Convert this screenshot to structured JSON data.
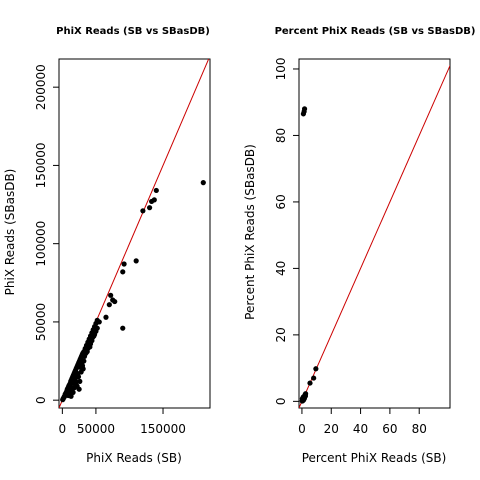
{
  "chart_data": [
    {
      "type": "scatter",
      "title": "PhiX Reads (SB vs SBasDB)",
      "xlabel": "PhiX Reads (SB)",
      "ylabel": "PhiX Reads (SBasDB)",
      "xlim": [
        -5000,
        220000
      ],
      "ylim": [
        -5000,
        218000
      ],
      "xticks": [
        0,
        50000,
        150000
      ],
      "xtick_labels": [
        "0",
        "50000",
        "150000"
      ],
      "yticks": [
        0,
        50000,
        100000,
        150000,
        200000
      ],
      "ytick_labels": [
        "0",
        "50000",
        "100000",
        "150000",
        "200000"
      ],
      "reference_line": {
        "slope": 1,
        "intercept": 0,
        "color": "#cc0000"
      },
      "point_color": "#000000",
      "grid": false,
      "series": [
        {
          "points": [
            [
              500,
              300
            ],
            [
              1200,
              900
            ],
            [
              2000,
              1500
            ],
            [
              2800,
              2200
            ],
            [
              3500,
              2500
            ],
            [
              4200,
              3800
            ],
            [
              5000,
              4200
            ],
            [
              5800,
              5000
            ],
            [
              6500,
              5500
            ],
            [
              7200,
              6800
            ],
            [
              8000,
              7500
            ],
            [
              8800,
              8000
            ],
            [
              9500,
              9000
            ],
            [
              10500,
              9800
            ],
            [
              11500,
              10500
            ],
            [
              12500,
              12000
            ],
            [
              13500,
              13000
            ],
            [
              14500,
              14000
            ],
            [
              15500,
              15000
            ],
            [
              16500,
              16000
            ],
            [
              17500,
              17000
            ],
            [
              18500,
              18000
            ],
            [
              19500,
              19000
            ],
            [
              20500,
              20000
            ],
            [
              21500,
              21000
            ],
            [
              22500,
              22000
            ],
            [
              23500,
              23000
            ],
            [
              24500,
              24000
            ],
            [
              25500,
              25000
            ],
            [
              26500,
              26000
            ],
            [
              27500,
              27000
            ],
            [
              28500,
              28000
            ],
            [
              29500,
              29000
            ],
            [
              30500,
              30000
            ],
            [
              32000,
              31000
            ],
            [
              34000,
              33000
            ],
            [
              36000,
              35000
            ],
            [
              38000,
              37000
            ],
            [
              40000,
              39000
            ],
            [
              42000,
              41000
            ],
            [
              44000,
              43000
            ],
            [
              46000,
              45000
            ],
            [
              48000,
              47000
            ],
            [
              50000,
              49000
            ],
            [
              52000,
              51000
            ],
            [
              55000,
              50000
            ],
            [
              9000,
              3000
            ],
            [
              11000,
              4500
            ],
            [
              14000,
              6000
            ],
            [
              16000,
              5000
            ],
            [
              18000,
              8000
            ],
            [
              20000,
              11000
            ],
            [
              22000,
              9000
            ],
            [
              24000,
              15000
            ],
            [
              26000,
              12000
            ],
            [
              28000,
              18000
            ],
            [
              30000,
              22000
            ],
            [
              32000,
              25000
            ],
            [
              35000,
              30000
            ],
            [
              38000,
              33000
            ],
            [
              42000,
              36000
            ],
            [
              45000,
              40000
            ],
            [
              48000,
              42000
            ],
            [
              52000,
              46000
            ],
            [
              15000,
              8000
            ],
            [
              19000,
              13000
            ],
            [
              23000,
              17000
            ],
            [
              27000,
              21000
            ],
            [
              31000,
              20000
            ],
            [
              13000,
              2500
            ],
            [
              25000,
              7000
            ],
            [
              10000,
              6000
            ],
            [
              17000,
              11000
            ],
            [
              21000,
              15000
            ],
            [
              29000,
              24000
            ],
            [
              33000,
              28000
            ],
            [
              37000,
              31000
            ],
            [
              41000,
              34000
            ],
            [
              44000,
              38000
            ],
            [
              47000,
              41000
            ],
            [
              50000,
              44000
            ],
            [
              65000,
              53000
            ],
            [
              70000,
              61000
            ],
            [
              72000,
              67000
            ],
            [
              75000,
              64000
            ],
            [
              78000,
              63000
            ],
            [
              90000,
              82000
            ],
            [
              92000,
              87000
            ],
            [
              90000,
              46000
            ],
            [
              110000,
              89000
            ],
            [
              120000,
              121000
            ],
            [
              130000,
              123000
            ],
            [
              133000,
              127000
            ],
            [
              137000,
              128000
            ],
            [
              140000,
              134000
            ],
            [
              210000,
              139000
            ]
          ]
        }
      ]
    },
    {
      "type": "scatter",
      "title": "Percent PhiX Reads (SB vs SBasDB)",
      "xlabel": "Percent PhiX Reads (SB)",
      "ylabel": "Percent PhiX Reads (SBasDB)",
      "xlim": [
        -2,
        101
      ],
      "ylim": [
        -2,
        103
      ],
      "xticks": [
        0,
        20,
        40,
        60,
        80
      ],
      "xtick_labels": [
        "0",
        "20",
        "40",
        "60",
        "80"
      ],
      "yticks": [
        0,
        20,
        40,
        60,
        80,
        100
      ],
      "ytick_labels": [
        "0",
        "20",
        "40",
        "60",
        "80",
        "100"
      ],
      "reference_line": {
        "slope": 1,
        "intercept": 0,
        "color": "#cc0000"
      },
      "point_color": "#000000",
      "grid": false,
      "series": [
        {
          "points": [
            [
              0.2,
              0.1
            ],
            [
              0.4,
              0.3
            ],
            [
              0.6,
              0.2
            ],
            [
              0.8,
              0.6
            ],
            [
              1.0,
              0.8
            ],
            [
              1.2,
              1.0
            ],
            [
              0.5,
              0.5
            ],
            [
              1.5,
              1.2
            ],
            [
              1.8,
              1.5
            ],
            [
              2.0,
              1.8
            ],
            [
              2.2,
              2.0
            ],
            [
              2.5,
              2.3
            ],
            [
              0.3,
              0.8
            ],
            [
              1.1,
              0.4
            ],
            [
              1.7,
              0.9
            ],
            [
              2.4,
              1.6
            ],
            [
              0.9,
              1.3
            ],
            [
              5.5,
              5.5
            ],
            [
              8.0,
              7.0
            ],
            [
              9.5,
              9.8
            ],
            [
              1.0,
              86.5
            ],
            [
              1.5,
              87.2
            ],
            [
              1.8,
              88.0
            ]
          ]
        }
      ]
    }
  ]
}
